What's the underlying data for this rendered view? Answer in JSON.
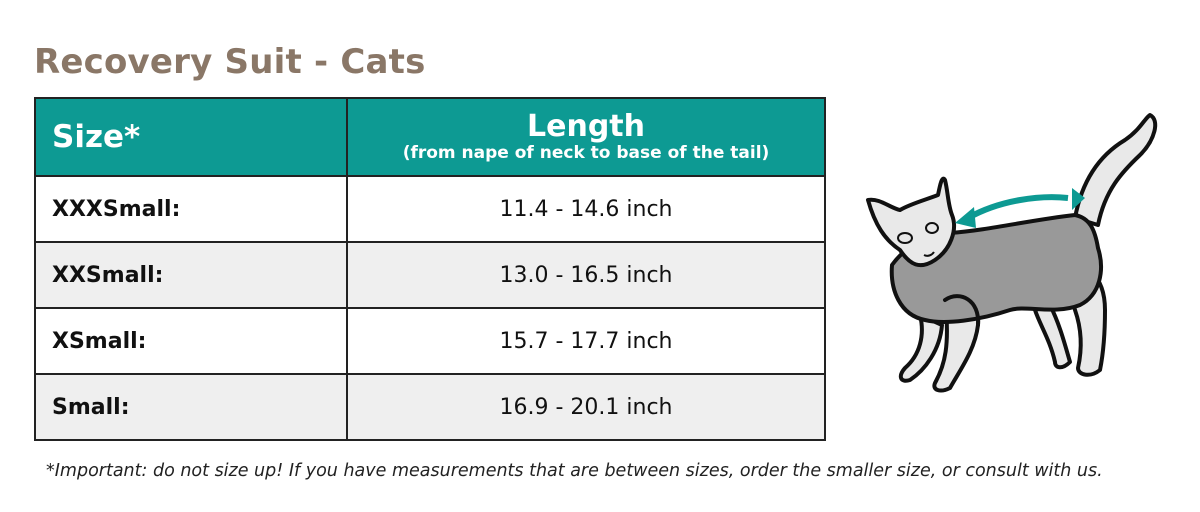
{
  "title": "Recovery Suit - Cats",
  "table": {
    "headers": {
      "size": "Size*",
      "length": "Length",
      "length_sub": "(from nape of neck to base of the tail)"
    },
    "rows": [
      {
        "size": "XXXSmall:",
        "length": "11.4 - 14.6 inch"
      },
      {
        "size": "XXSmall:",
        "length": "13.0 - 16.5 inch"
      },
      {
        "size": "XSmall:",
        "length": "15.7 - 17.7 inch"
      },
      {
        "size": "Small:",
        "length": "16.9 - 20.1 inch"
      }
    ]
  },
  "footnote": "*Important: do not size up! If you have measurements that are between sizes, order the smaller size, or consult with us.",
  "colors": {
    "title": "#8a7767",
    "header": "#0d9a93",
    "arrow": "#0d9a93",
    "suit": "#999999"
  },
  "illustration": "cat-wearing-recovery-suit-with-length-arrow"
}
